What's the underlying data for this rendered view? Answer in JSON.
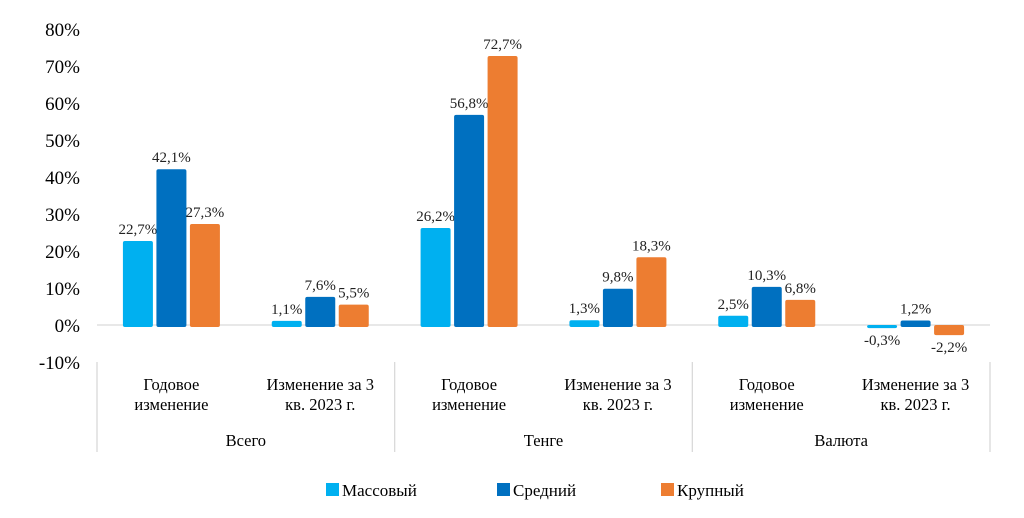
{
  "chart_data": {
    "type": "bar",
    "categories": [
      {
        "group": "Всего",
        "lines": [
          "Годовое",
          "изменение"
        ]
      },
      {
        "group": "Всего",
        "lines": [
          "Изменение за 3",
          "кв. 2023 г."
        ]
      },
      {
        "group": "Тенге",
        "lines": [
          "Годовое",
          "изменение"
        ]
      },
      {
        "group": "Тенге",
        "lines": [
          "Изменение за 3",
          "кв. 2023 г."
        ]
      },
      {
        "group": "Валюта",
        "lines": [
          "Годовое",
          "изменение"
        ]
      },
      {
        "group": "Валюта",
        "lines": [
          "Изменение за 3",
          "кв. 2023 г."
        ]
      }
    ],
    "groups": [
      "Всего",
      "Тенге",
      "Валюта"
    ],
    "series": [
      {
        "name": "Массовый",
        "color": "#00B0F0",
        "values": [
          22.7,
          1.1,
          26.2,
          1.3,
          2.5,
          -0.3
        ],
        "labels": [
          "22,7%",
          "1,1%",
          "26,2%",
          "1,3%",
          "2,5%",
          "-0,3%"
        ]
      },
      {
        "name": "Средний",
        "color": "#0070C0",
        "values": [
          42.1,
          7.6,
          56.8,
          9.8,
          10.3,
          1.2
        ],
        "labels": [
          "42,1%",
          "7,6%",
          "56,8%",
          "9,8%",
          "10,3%",
          "1,2%"
        ]
      },
      {
        "name": "Крупный",
        "color": "#ED7D31",
        "values": [
          27.3,
          5.5,
          72.7,
          18.3,
          6.8,
          -2.2
        ],
        "labels": [
          "27,3%",
          "5,5%",
          "72,7%",
          "18,3%",
          "6,8%",
          "-2,2%"
        ]
      }
    ],
    "ylim": [
      -10,
      80
    ],
    "yticks": [
      "-10%",
      "0%",
      "10%",
      "20%",
      "30%",
      "40%",
      "50%",
      "60%",
      "70%",
      "80%"
    ],
    "ytick_values": [
      -10,
      0,
      10,
      20,
      30,
      40,
      50,
      60,
      70,
      80
    ],
    "grid": false,
    "legend": "bottom",
    "title": "",
    "xlabel": "",
    "ylabel": ""
  }
}
